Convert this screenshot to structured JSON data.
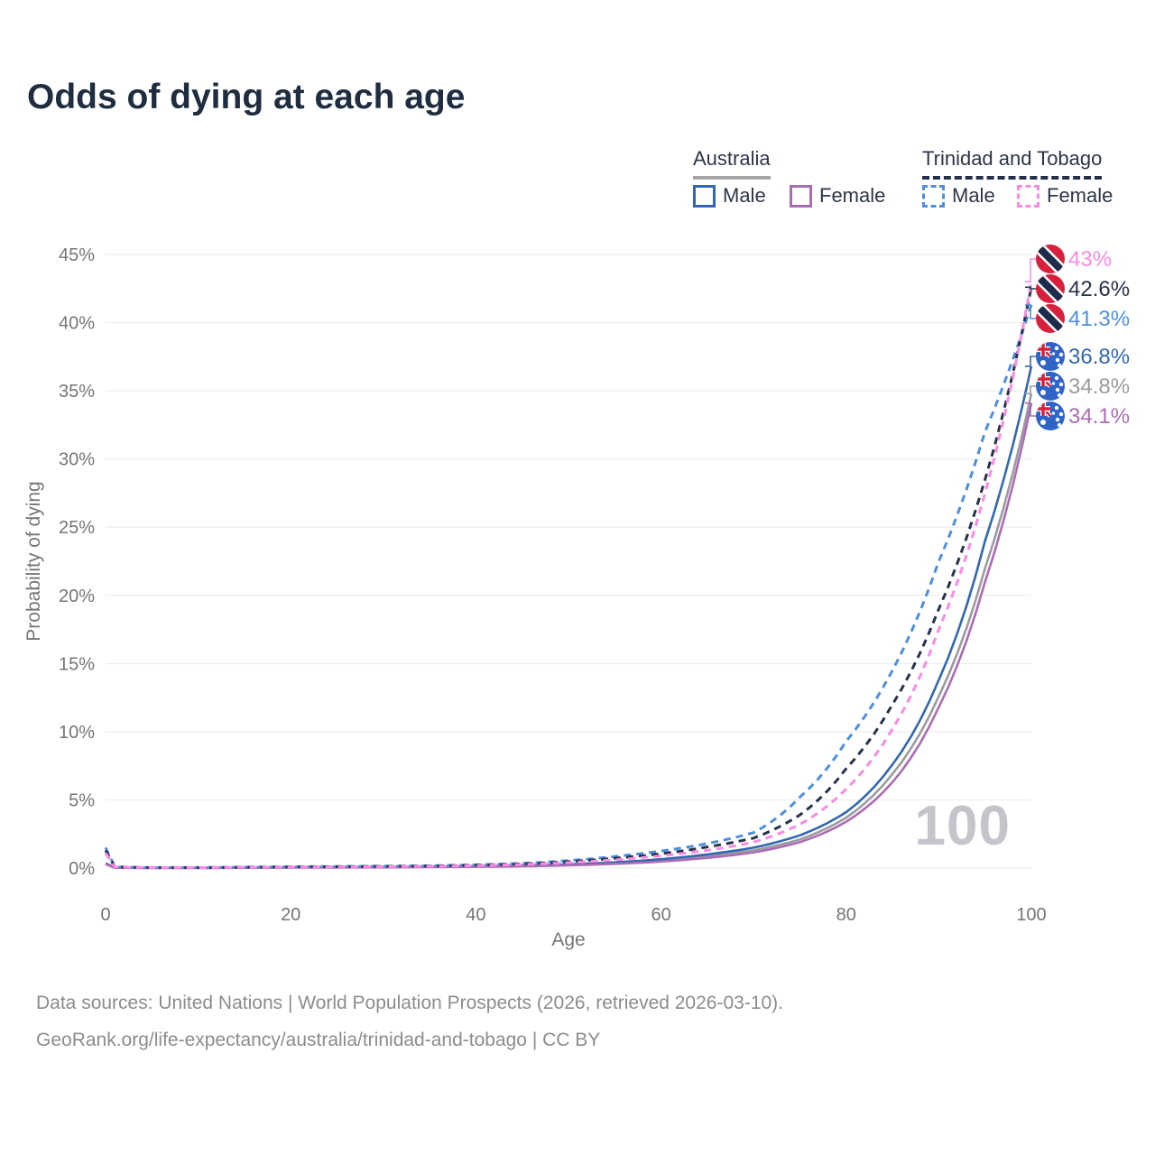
{
  "title": "Odds of dying at each age",
  "legend": {
    "groups": [
      {
        "label": "Australia",
        "line_style": "solid",
        "underline_color": "#a6a6a6",
        "items": [
          {
            "label": "Male",
            "color": "#3268b0"
          },
          {
            "label": "Female",
            "color": "#ab6cb4"
          }
        ]
      },
      {
        "label": "Trinidad and Tobago",
        "line_style": "dashed",
        "underline_color": "#22304a",
        "items": [
          {
            "label": "Male",
            "color": "#4e8fe0"
          },
          {
            "label": "Female",
            "color": "#fb8ae4"
          }
        ]
      }
    ]
  },
  "watermark": "100",
  "footer": {
    "line1": "Data sources: United Nations | World Population Prospects (2026, retrieved 2026-03-10).",
    "line2": "GeoRank.org/life-expectancy/australia/trinidad-and-tobago | CC BY"
  },
  "chart_data": {
    "type": "line",
    "title": "Odds of dying at each age",
    "xlabel": "Age",
    "ylabel": "Probability of dying",
    "xlim": [
      0,
      100
    ],
    "ylim": [
      0,
      45
    ],
    "grid": "horizontal",
    "legend_position": "top-right",
    "x_ticks": [
      {
        "v": 0,
        "label": "0"
      },
      {
        "v": 20,
        "label": "20"
      },
      {
        "v": 40,
        "label": "40"
      },
      {
        "v": 60,
        "label": "60"
      },
      {
        "v": 80,
        "label": "80"
      },
      {
        "v": 100,
        "label": "100"
      }
    ],
    "y_ticks": [
      {
        "v": 0,
        "label": "0%"
      },
      {
        "v": 5,
        "label": "5%"
      },
      {
        "v": 10,
        "label": "10%"
      },
      {
        "v": 15,
        "label": "15%"
      },
      {
        "v": 20,
        "label": "20%"
      },
      {
        "v": 25,
        "label": "25%"
      },
      {
        "v": 30,
        "label": "30%"
      },
      {
        "v": 35,
        "label": "35%"
      },
      {
        "v": 40,
        "label": "40%"
      },
      {
        "v": 45,
        "label": "45%"
      }
    ],
    "x": [
      0,
      1,
      5,
      10,
      15,
      20,
      25,
      30,
      35,
      40,
      45,
      50,
      55,
      60,
      65,
      70,
      75,
      80,
      85,
      90,
      95,
      100
    ],
    "series": [
      {
        "name": "Australia",
        "sex": "both",
        "color": "#9b9ba0",
        "dash": false,
        "values": [
          0.3,
          0.03,
          0.01,
          0.01,
          0.03,
          0.05,
          0.06,
          0.07,
          0.09,
          0.11,
          0.16,
          0.24,
          0.37,
          0.57,
          0.88,
          1.3,
          2.1,
          3.7,
          6.9,
          12.6,
          22.0,
          34.8
        ]
      },
      {
        "name": "Australia Male",
        "sex": "male",
        "color": "#3268b0",
        "dash": false,
        "values": [
          0.35,
          0.03,
          0.01,
          0.01,
          0.04,
          0.06,
          0.07,
          0.08,
          0.1,
          0.13,
          0.18,
          0.27,
          0.42,
          0.65,
          1.0,
          1.5,
          2.4,
          4.1,
          7.6,
          13.8,
          24.0,
          36.8
        ]
      },
      {
        "name": "Australia Female",
        "sex": "female",
        "color": "#ab6cb4",
        "dash": false,
        "values": [
          0.3,
          0.02,
          0.01,
          0.01,
          0.02,
          0.03,
          0.04,
          0.05,
          0.07,
          0.09,
          0.13,
          0.2,
          0.31,
          0.48,
          0.75,
          1.15,
          1.9,
          3.4,
          6.3,
          11.8,
          21.0,
          34.1
        ]
      },
      {
        "name": "Trinidad and Tobago Male",
        "sex": "male",
        "color": "#4e8fe0",
        "dash": true,
        "values": [
          1.5,
          0.09,
          0.04,
          0.04,
          0.07,
          0.1,
          0.12,
          0.14,
          0.17,
          0.24,
          0.35,
          0.55,
          0.85,
          1.25,
          1.8,
          2.6,
          5.2,
          9.3,
          14.5,
          22.5,
          32.0,
          41.3
        ]
      },
      {
        "name": "Trinidad and Tobago",
        "sex": "both",
        "color": "#27334a",
        "dash": true,
        "values": [
          1.3,
          0.08,
          0.03,
          0.03,
          0.06,
          0.08,
          0.1,
          0.12,
          0.15,
          0.21,
          0.3,
          0.47,
          0.72,
          1.05,
          1.55,
          2.2,
          3.9,
          7.3,
          12.0,
          19.0,
          28.5,
          42.6
        ]
      },
      {
        "name": "Trinidad and Tobago Female",
        "sex": "female",
        "color": "#fb8ae4",
        "dash": true,
        "values": [
          1.1,
          0.07,
          0.03,
          0.03,
          0.05,
          0.07,
          0.08,
          0.1,
          0.13,
          0.18,
          0.26,
          0.4,
          0.6,
          0.9,
          1.3,
          1.9,
          3.2,
          5.8,
          10.2,
          17.5,
          27.5,
          43.0
        ]
      }
    ],
    "end_labels": [
      {
        "label": "43%",
        "value": 43.0,
        "color": "#fb8ae4",
        "flag": "trinidad-and-tobago",
        "series": "Trinidad and Tobago Female"
      },
      {
        "label": "42.6%",
        "value": 42.6,
        "color": "#27334a",
        "flag": "trinidad-and-tobago",
        "series": "Trinidad and Tobago"
      },
      {
        "label": "41.3%",
        "value": 41.3,
        "color": "#4e8fe0",
        "flag": "trinidad-and-tobago",
        "series": "Trinidad and Tobago Male"
      },
      {
        "label": "36.8%",
        "value": 36.8,
        "color": "#3268b0",
        "flag": "australia",
        "series": "Australia Male"
      },
      {
        "label": "34.8%",
        "value": 34.8,
        "color": "#9b9ba0",
        "flag": "australia",
        "series": "Australia"
      },
      {
        "label": "34.1%",
        "value": 34.1,
        "color": "#ab6cb4",
        "flag": "australia",
        "series": "Australia Female"
      }
    ]
  }
}
